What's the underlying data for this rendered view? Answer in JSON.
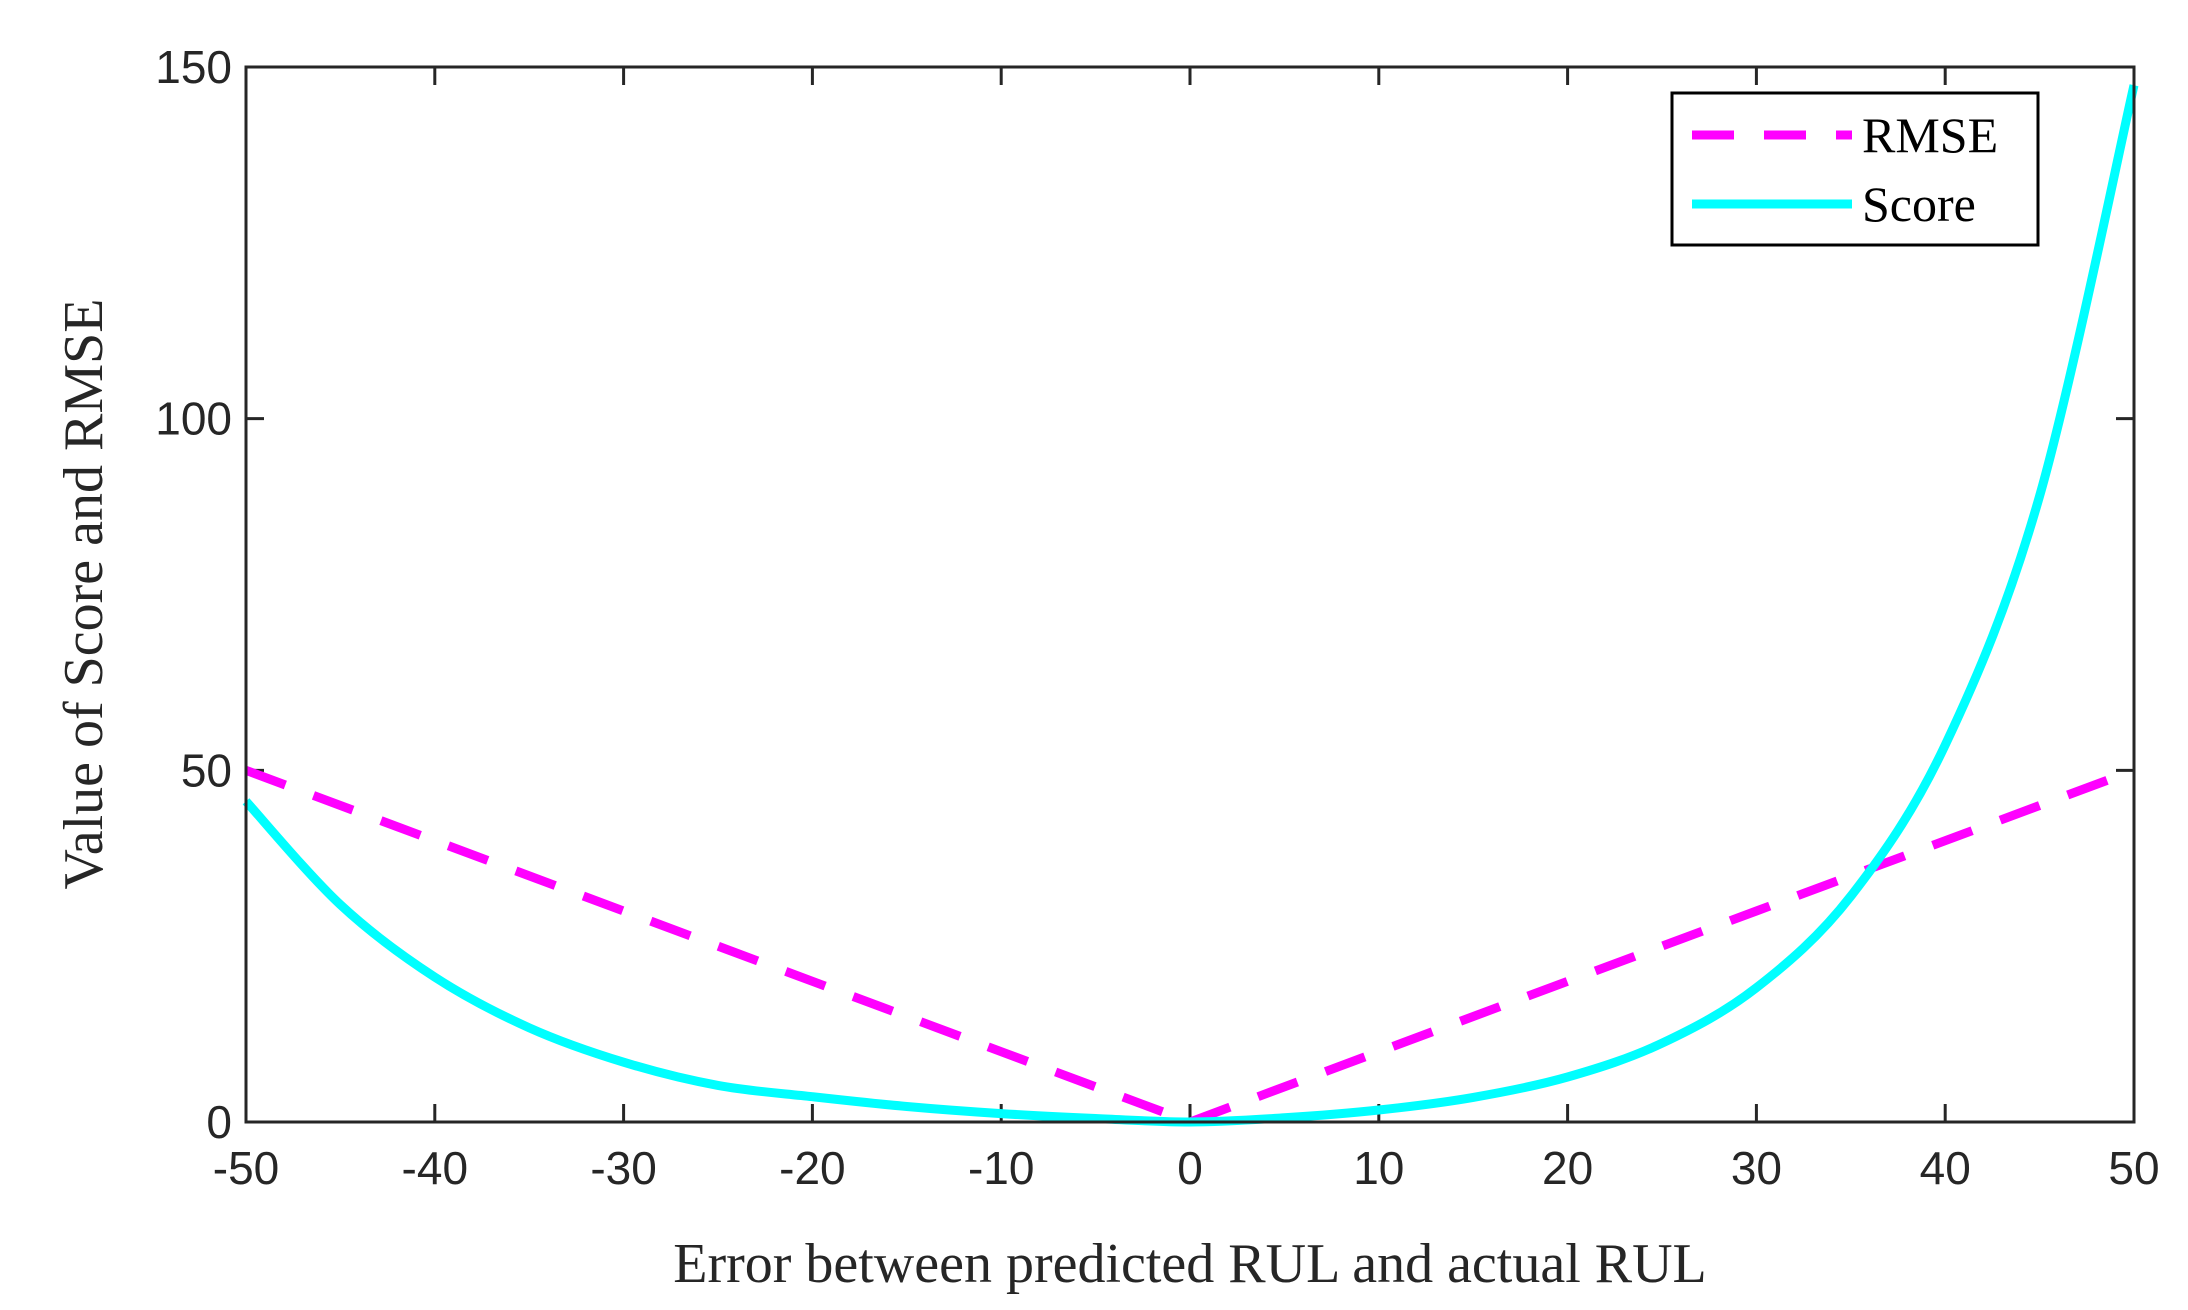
{
  "chart_data": {
    "type": "line",
    "xlabel": "Error between predicted RUL and actual RUL",
    "ylabel": "Value of Score and RMSE",
    "xlim": [
      -50,
      50
    ],
    "ylim": [
      0,
      150
    ],
    "xticks": [
      -50,
      -40,
      -30,
      -20,
      -10,
      0,
      10,
      20,
      30,
      40,
      50
    ],
    "yticks": [
      0,
      50,
      100,
      150
    ],
    "grid": false,
    "legend_position": "top-right",
    "series": [
      {
        "name": "RMSE",
        "style": "dashed",
        "color": "#ff00ff",
        "x": [
          -50,
          -40,
          -30,
          -20,
          -10,
          0,
          10,
          20,
          30,
          40,
          50
        ],
        "y": [
          50,
          40,
          30,
          20,
          10,
          0,
          10,
          20,
          30,
          40,
          50
        ]
      },
      {
        "name": "Score",
        "style": "solid",
        "color": "#00ffff",
        "x": [
          -50,
          -45,
          -40,
          -35,
          -30,
          -25,
          -20,
          -15,
          -10,
          -5,
          0,
          5,
          10,
          15,
          20,
          25,
          30,
          35,
          40,
          45,
          50
        ],
        "y": [
          45.6,
          30.9,
          20.6,
          13.4,
          8.5,
          5.2,
          3.6,
          2.2,
          1.2,
          0.5,
          0,
          0.6,
          1.7,
          3.5,
          6.4,
          11.2,
          19.1,
          32.1,
          53.6,
          89.0,
          147.4
        ]
      }
    ]
  }
}
